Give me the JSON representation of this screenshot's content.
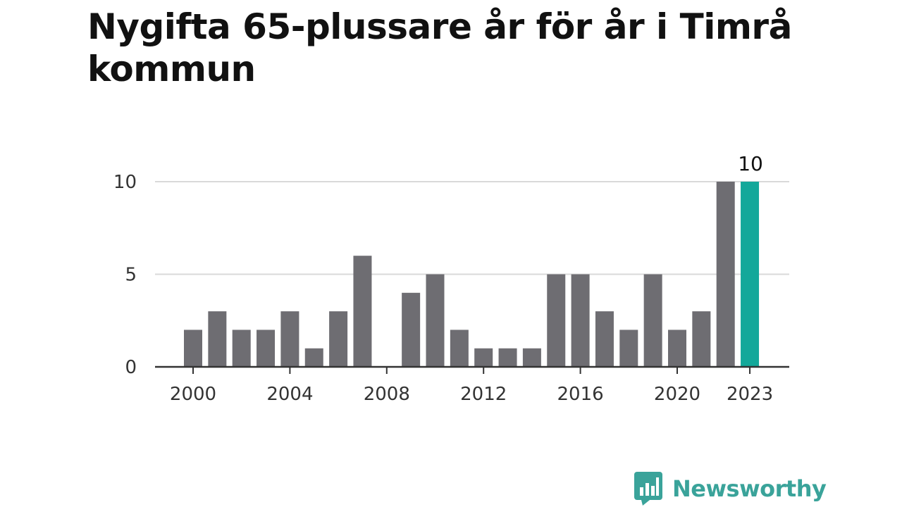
{
  "title": "Nygifta 65-plussare år för år i Timrå kommun",
  "brand": {
    "name": "Newsworthy",
    "color": "#3aa39a"
  },
  "colors": {
    "bar": "#6e6d72",
    "highlight": "#13a89a",
    "grid": "#d9d9d9",
    "axis": "#333333"
  },
  "chart_data": {
    "type": "bar",
    "title": "Nygifta 65-plussare år för år i Timrå kommun",
    "xlabel": "",
    "ylabel": "",
    "categories": [
      2000,
      2001,
      2002,
      2003,
      2004,
      2005,
      2006,
      2007,
      2008,
      2009,
      2010,
      2011,
      2012,
      2013,
      2014,
      2015,
      2016,
      2017,
      2018,
      2019,
      2020,
      2021,
      2022,
      2023
    ],
    "values": [
      2,
      3,
      2,
      2,
      3,
      1,
      3,
      6,
      0,
      4,
      5,
      2,
      1,
      1,
      1,
      5,
      5,
      3,
      2,
      5,
      2,
      3,
      10,
      10
    ],
    "highlight_category": 2023,
    "highlight_label": "10",
    "ylim": [
      0,
      10
    ],
    "yticks": [
      0,
      5,
      10
    ],
    "xticks": [
      2000,
      2004,
      2008,
      2012,
      2016,
      2020,
      2023
    ],
    "grid": true,
    "legend": "none"
  }
}
